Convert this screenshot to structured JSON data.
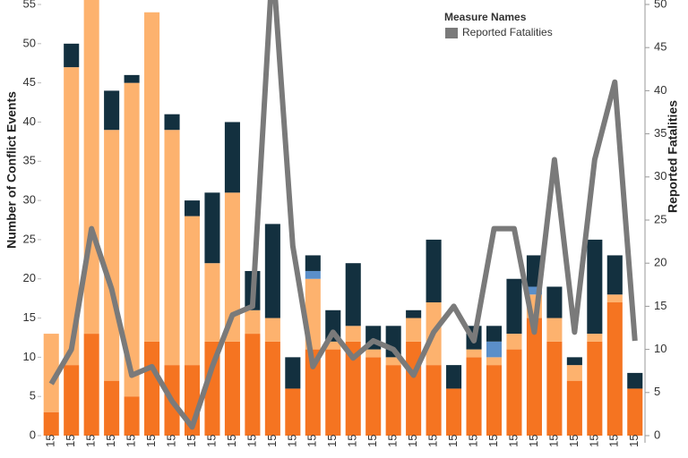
{
  "chart_data": {
    "type": "bar",
    "categories": [
      "15",
      "15",
      "15",
      "15",
      "15",
      "15",
      "15",
      "15",
      "15",
      "15",
      "15",
      "15",
      "15",
      "15",
      "15",
      "15",
      "15",
      "15",
      "15",
      "15",
      "15",
      "15",
      "15",
      "15",
      "15",
      "15",
      "15",
      "15",
      "15",
      "15"
    ],
    "series": [
      {
        "color": "#f57421",
        "values": [
          3,
          9,
          13,
          7,
          5,
          12,
          9,
          9,
          12,
          12,
          13,
          12,
          6,
          11,
          11,
          12,
          10,
          9,
          12,
          9,
          6,
          10,
          9,
          11,
          15,
          12,
          7,
          12,
          17,
          6
        ]
      },
      {
        "color": "#fdb26e",
        "values": [
          10,
          38,
          44,
          32,
          40,
          42,
          30,
          19,
          10,
          19,
          3,
          3,
          0,
          9,
          1,
          2,
          1,
          1,
          3,
          8,
          0,
          1,
          1,
          2,
          3,
          3,
          2,
          1,
          1,
          0
        ]
      },
      {
        "color": "#5b8fc9",
        "values": [
          0,
          0,
          0,
          0,
          0,
          0,
          0,
          0,
          0,
          0,
          0,
          0,
          0,
          1,
          0,
          0,
          0,
          0,
          0,
          0,
          0,
          0,
          2,
          0,
          1,
          0,
          0,
          0,
          0,
          0
        ]
      },
      {
        "color": "#13303f",
        "values": [
          0,
          3,
          0,
          5,
          1,
          0,
          2,
          2,
          9,
          9,
          5,
          12,
          4,
          2,
          4,
          8,
          3,
          4,
          1,
          8,
          3,
          3,
          2,
          7,
          4,
          4,
          1,
          12,
          5,
          2
        ]
      },
      {
        "name": "Reported Fatalities",
        "color": "#7a7a7a",
        "axis": "y2",
        "type": "line",
        "values": [
          6,
          10,
          24,
          17,
          7,
          8,
          4,
          1,
          8,
          14,
          15,
          55,
          22,
          8,
          12,
          9,
          11,
          10,
          7,
          12,
          15,
          11,
          24,
          24,
          12,
          32,
          12,
          32,
          41,
          11
        ]
      }
    ],
    "ylabel": "Number of Conflict Events",
    "y2label": "Reported Fatalities",
    "legend_title": "Measure Names",
    "ylim": [
      0,
      55
    ],
    "yticks": [
      0,
      5,
      10,
      15,
      20,
      25,
      30,
      35,
      40,
      45,
      50,
      55
    ],
    "y2lim": [
      0,
      50
    ],
    "y2ticks": [
      0,
      5,
      10,
      15,
      20,
      25,
      30,
      35,
      40,
      45,
      50
    ]
  }
}
